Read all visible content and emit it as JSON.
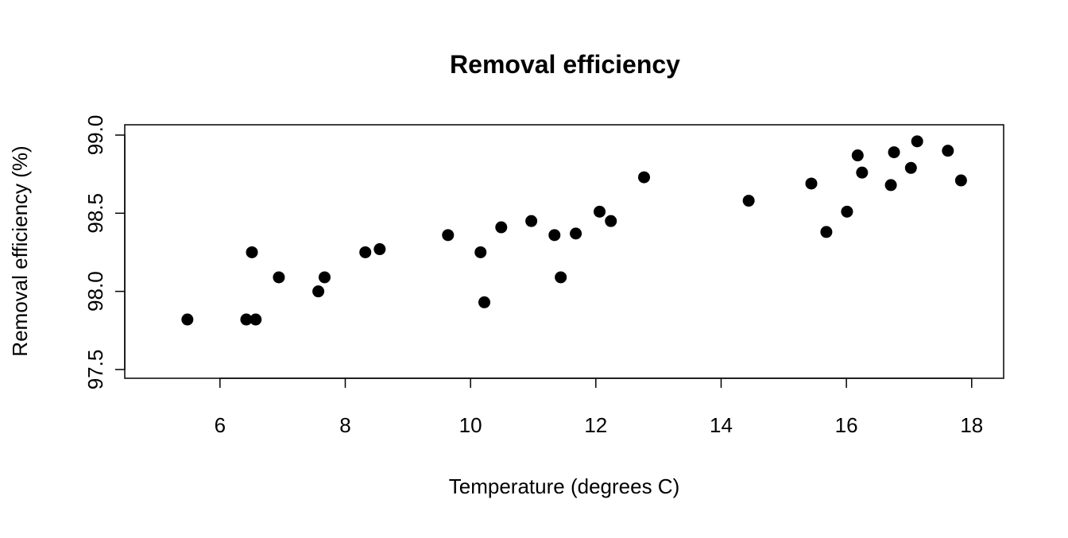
{
  "chart_data": {
    "type": "scatter",
    "title": "Removal efficiency",
    "xlabel": "Temperature (degrees C)",
    "ylabel": "Removal efficiency (%)",
    "xlim": [
      4.48,
      18.51
    ],
    "ylim": [
      97.444,
      99.066
    ],
    "xticks": [
      6,
      8,
      10,
      12,
      14,
      16,
      18
    ],
    "xtick_labels": [
      "6",
      "8",
      "10",
      "12",
      "14",
      "16",
      "18"
    ],
    "yticks": [
      97.5,
      98.0,
      98.5,
      99.0
    ],
    "ytick_labels": [
      "97.5",
      "98.0",
      "98.5",
      "99.0"
    ],
    "grid": false,
    "marker_color": "#000000",
    "points": [
      [
        5.48,
        97.82
      ],
      [
        6.42,
        97.82
      ],
      [
        6.57,
        97.82
      ],
      [
        6.51,
        98.25
      ],
      [
        6.94,
        98.09
      ],
      [
        7.57,
        98.0
      ],
      [
        7.67,
        98.09
      ],
      [
        8.32,
        98.25
      ],
      [
        8.55,
        98.27
      ],
      [
        9.64,
        98.36
      ],
      [
        10.16,
        98.25
      ],
      [
        10.22,
        97.93
      ],
      [
        10.49,
        98.41
      ],
      [
        10.97,
        98.45
      ],
      [
        11.34,
        98.36
      ],
      [
        11.44,
        98.09
      ],
      [
        11.68,
        98.37
      ],
      [
        12.06,
        98.51
      ],
      [
        12.24,
        98.45
      ],
      [
        12.77,
        98.73
      ],
      [
        14.44,
        98.58
      ],
      [
        15.44,
        98.69
      ],
      [
        15.68,
        98.38
      ],
      [
        16.01,
        98.51
      ],
      [
        16.18,
        98.87
      ],
      [
        16.25,
        98.76
      ],
      [
        16.71,
        98.68
      ],
      [
        16.76,
        98.89
      ],
      [
        17.03,
        98.79
      ],
      [
        17.13,
        98.96
      ],
      [
        17.62,
        98.9
      ],
      [
        17.83,
        98.71
      ]
    ]
  }
}
